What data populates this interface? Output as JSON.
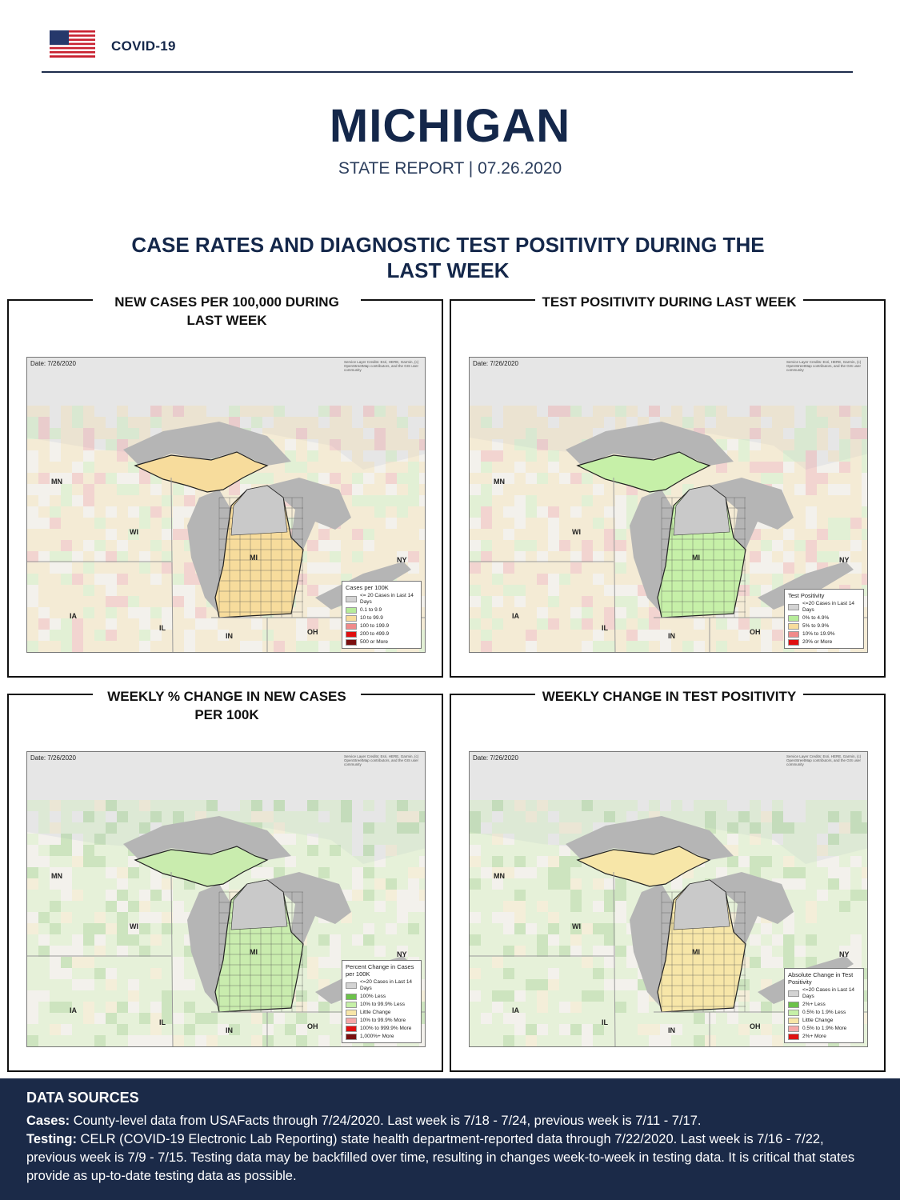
{
  "header": {
    "brand": "COVID-19",
    "state": "MICHIGAN",
    "subtitle": "STATE REPORT | 07.26.2020"
  },
  "section_title": "CASE RATES AND DIAGNOSTIC TEST POSITIVITY DURING THE LAST WEEK",
  "map_common": {
    "date": "Date: 7/26/2020",
    "credit": "Service Layer Credits: Esri, HERE, Garmin, (c) OpenStreetMap contributors, and the GIS user community",
    "state_labels": [
      "MN",
      "WI",
      "MI",
      "NY",
      "IA",
      "IL",
      "IN",
      "OH"
    ]
  },
  "panels": [
    {
      "title": "NEW CASES PER 100,000 DURING LAST WEEK",
      "mi_fill": "#f7dc9c",
      "legend": {
        "title": "Cases per 100K",
        "items": [
          {
            "label": "<= 20 Cases in Last 14 Days",
            "color": "#d3d3d3"
          },
          {
            "label": "0.1 to 9.9",
            "color": "#b7ec9a"
          },
          {
            "label": "10 to 99.9",
            "color": "#f7dc9c"
          },
          {
            "label": "100 to 199.9",
            "color": "#f08a8a"
          },
          {
            "label": "200 to 499.9",
            "color": "#e01010"
          },
          {
            "label": "500 or More",
            "color": "#7a0f0f"
          }
        ]
      }
    },
    {
      "title": "TEST POSITIVITY DURING LAST WEEK",
      "mi_fill": "#c6f0a8",
      "legend": {
        "title": "Test Positivity",
        "items": [
          {
            "label": "<=20 Cases in Last 14 Days",
            "color": "#d3d3d3"
          },
          {
            "label": "0% to 4.9%",
            "color": "#b7ec9a"
          },
          {
            "label": "5% to 9.9%",
            "color": "#f7dc9c"
          },
          {
            "label": "10% to 19.9%",
            "color": "#f08a8a"
          },
          {
            "label": "20% or More",
            "color": "#e01010"
          }
        ]
      }
    },
    {
      "title": "WEEKLY % CHANGE IN NEW CASES PER 100K",
      "mi_fill": "#c9ecae",
      "legend": {
        "title": "Percent Change in Cases per 100K",
        "items": [
          {
            "label": "<=20 Cases in Last 14 Days",
            "color": "#d3d3d3"
          },
          {
            "label": "100% Less",
            "color": "#6cc24a"
          },
          {
            "label": "10% to 99.9% Less",
            "color": "#c6f0a8"
          },
          {
            "label": "Little Change",
            "color": "#f7e6a8"
          },
          {
            "label": "10% to 99.9% More",
            "color": "#f5a8a8"
          },
          {
            "label": "100% to 999.9% More",
            "color": "#e01010"
          },
          {
            "label": "1,000%+ More",
            "color": "#7a0f0f"
          }
        ]
      }
    },
    {
      "title": "WEEKLY CHANGE IN TEST POSITIVITY",
      "mi_fill": "#f7e6a8",
      "legend": {
        "title": "Absolute Change in Test Positivity",
        "items": [
          {
            "label": "<=20 Cases in Last 14 Days",
            "color": "#d3d3d3"
          },
          {
            "label": "2%+ Less",
            "color": "#6cc24a"
          },
          {
            "label": "0.5% to 1.9% Less",
            "color": "#c6f0a8"
          },
          {
            "label": "Little Change",
            "color": "#f7e6a8"
          },
          {
            "label": "0.5% to 1.9% More",
            "color": "#f5a8a8"
          },
          {
            "label": "2%+ More",
            "color": "#e01010"
          }
        ]
      }
    }
  ],
  "footer": {
    "title": "DATA SOURCES",
    "cases_label": "Cases:",
    "cases_text": " County-level data from USAFacts through 7/24/2020. Last week is 7/18 - 7/24, previous week is 7/11 - 7/17.",
    "testing_label": "Testing:",
    "testing_text": " CELR (COVID-19 Electronic Lab Reporting) state health department-reported data through 7/22/2020. Last week is 7/16 - 7/22, previous week is 7/9 - 7/15. Testing data may be backfilled over time, resulting in changes week-to-week in testing data. It is critical that states provide as up-to-date testing data as possible."
  }
}
